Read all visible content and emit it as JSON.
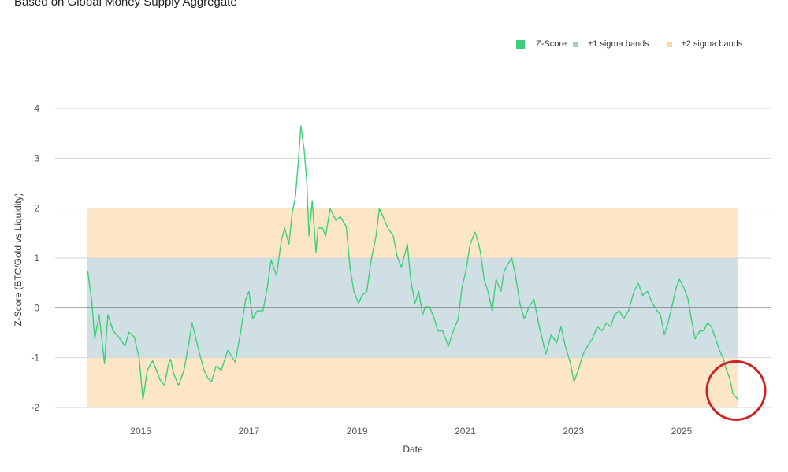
{
  "subtitle": "Based on Global Money Supply Aggregate",
  "legend": [
    {
      "label": "Z-Score",
      "color": "#3ecf7a"
    },
    {
      "label": "±1 sigma bands",
      "color": "#a9c6cf"
    },
    {
      "label": "±2 sigma bands",
      "color": "#f9d9a6"
    }
  ],
  "colors": {
    "line": "#3ecf7a",
    "band1": "#cfdfe3",
    "band2": "#fde6c8",
    "zero_line": "#222222",
    "grid": "#d6d6d6",
    "highlight_circle": "#cc2222"
  },
  "chart_data": {
    "type": "line",
    "xlabel": "Date",
    "ylabel": "Z-Score (BTC/Gold vs Liquidity)",
    "xlim": [
      2014.0,
      2026.05
    ],
    "ylim": [
      -2,
      4
    ],
    "x_ticks": [
      "2015",
      "2017",
      "2019",
      "2021",
      "2023",
      "2025"
    ],
    "y_ticks": [
      "4",
      "3",
      "2",
      "1",
      "0",
      "-1",
      "-2"
    ],
    "grid": true,
    "legend_position": "top-right",
    "bands": {
      "sigma1": [
        -1,
        1
      ],
      "sigma2": [
        -2,
        2
      ]
    },
    "annotation": "red circle around latest value",
    "series": [
      {
        "name": "Z-Score",
        "points": [
          [
            2014.0,
            0.65
          ],
          [
            2014.02,
            0.73
          ],
          [
            2014.09,
            0.17
          ],
          [
            2014.15,
            -0.62
          ],
          [
            2014.23,
            -0.14
          ],
          [
            2014.28,
            -0.62
          ],
          [
            2014.33,
            -1.12
          ],
          [
            2014.39,
            -0.14
          ],
          [
            2014.49,
            -0.46
          ],
          [
            2014.59,
            -0.58
          ],
          [
            2014.71,
            -0.77
          ],
          [
            2014.78,
            -0.49
          ],
          [
            2014.88,
            -0.58
          ],
          [
            2014.97,
            -1.01
          ],
          [
            2015.04,
            -1.85
          ],
          [
            2015.12,
            -1.25
          ],
          [
            2015.22,
            -1.06
          ],
          [
            2015.29,
            -1.25
          ],
          [
            2015.36,
            -1.45
          ],
          [
            2015.44,
            -1.56
          ],
          [
            2015.51,
            -1.14
          ],
          [
            2015.55,
            -1.03
          ],
          [
            2015.61,
            -1.33
          ],
          [
            2015.7,
            -1.56
          ],
          [
            2015.8,
            -1.25
          ],
          [
            2015.88,
            -0.77
          ],
          [
            2015.95,
            -0.3
          ],
          [
            2016.02,
            -0.62
          ],
          [
            2016.09,
            -0.93
          ],
          [
            2016.17,
            -1.25
          ],
          [
            2016.24,
            -1.41
          ],
          [
            2016.31,
            -1.48
          ],
          [
            2016.39,
            -1.17
          ],
          [
            2016.49,
            -1.25
          ],
          [
            2016.61,
            -0.85
          ],
          [
            2016.75,
            -1.09
          ],
          [
            2016.85,
            -0.46
          ],
          [
            2016.94,
            0.17
          ],
          [
            2017.0,
            0.33
          ],
          [
            2017.07,
            -0.22
          ],
          [
            2017.15,
            -0.06
          ],
          [
            2017.26,
            -0.06
          ],
          [
            2017.34,
            0.41
          ],
          [
            2017.41,
            0.96
          ],
          [
            2017.51,
            0.65
          ],
          [
            2017.6,
            1.36
          ],
          [
            2017.66,
            1.6
          ],
          [
            2017.74,
            1.28
          ],
          [
            2017.8,
            1.91
          ],
          [
            2017.86,
            2.23
          ],
          [
            2017.92,
            3.02
          ],
          [
            2017.96,
            3.65
          ],
          [
            2018.02,
            3.18
          ],
          [
            2018.07,
            2.54
          ],
          [
            2018.11,
            1.44
          ],
          [
            2018.17,
            2.15
          ],
          [
            2018.24,
            1.12
          ],
          [
            2018.28,
            1.6
          ],
          [
            2018.36,
            1.6
          ],
          [
            2018.42,
            1.44
          ],
          [
            2018.5,
            1.99
          ],
          [
            2018.61,
            1.75
          ],
          [
            2018.69,
            1.83
          ],
          [
            2018.8,
            1.63
          ],
          [
            2018.87,
            0.81
          ],
          [
            2018.94,
            0.33
          ],
          [
            2019.03,
            0.09
          ],
          [
            2019.09,
            0.25
          ],
          [
            2019.18,
            0.33
          ],
          [
            2019.26,
            0.96
          ],
          [
            2019.35,
            1.44
          ],
          [
            2019.41,
            1.99
          ],
          [
            2019.48,
            1.83
          ],
          [
            2019.57,
            1.6
          ],
          [
            2019.67,
            1.44
          ],
          [
            2019.74,
            1.04
          ],
          [
            2019.82,
            0.81
          ],
          [
            2019.93,
            1.28
          ],
          [
            2019.99,
            0.57
          ],
          [
            2020.07,
            0.09
          ],
          [
            2020.14,
            0.33
          ],
          [
            2020.21,
            -0.14
          ],
          [
            2020.26,
            0.02
          ],
          [
            2020.34,
            0.02
          ],
          [
            2020.43,
            -0.22
          ],
          [
            2020.49,
            -0.46
          ],
          [
            2020.58,
            -0.46
          ],
          [
            2020.69,
            -0.77
          ],
          [
            2020.78,
            -0.46
          ],
          [
            2020.87,
            -0.22
          ],
          [
            2020.94,
            0.41
          ],
          [
            2021.01,
            0.73
          ],
          [
            2021.09,
            1.28
          ],
          [
            2021.18,
            1.52
          ],
          [
            2021.23,
            1.36
          ],
          [
            2021.28,
            1.12
          ],
          [
            2021.35,
            0.57
          ],
          [
            2021.42,
            0.33
          ],
          [
            2021.5,
            -0.06
          ],
          [
            2021.57,
            0.57
          ],
          [
            2021.66,
            0.33
          ],
          [
            2021.72,
            0.73
          ],
          [
            2021.79,
            0.88
          ],
          [
            2021.86,
            1.0
          ],
          [
            2021.93,
            0.65
          ],
          [
            2022.01,
            0.09
          ],
          [
            2022.09,
            -0.22
          ],
          [
            2022.18,
            0.02
          ],
          [
            2022.27,
            0.17
          ],
          [
            2022.37,
            -0.38
          ],
          [
            2022.49,
            -0.93
          ],
          [
            2022.59,
            -0.54
          ],
          [
            2022.69,
            -0.7
          ],
          [
            2022.77,
            -0.38
          ],
          [
            2022.85,
            -0.77
          ],
          [
            2022.94,
            -1.09
          ],
          [
            2023.01,
            -1.48
          ],
          [
            2023.09,
            -1.25
          ],
          [
            2023.18,
            -0.93
          ],
          [
            2023.26,
            -0.77
          ],
          [
            2023.35,
            -0.62
          ],
          [
            2023.44,
            -0.38
          ],
          [
            2023.53,
            -0.46
          ],
          [
            2023.61,
            -0.3
          ],
          [
            2023.69,
            -0.38
          ],
          [
            2023.76,
            -0.14
          ],
          [
            2023.85,
            -0.06
          ],
          [
            2023.93,
            -0.22
          ],
          [
            2024.02,
            -0.06
          ],
          [
            2024.12,
            0.33
          ],
          [
            2024.2,
            0.49
          ],
          [
            2024.28,
            0.25
          ],
          [
            2024.37,
            0.33
          ],
          [
            2024.46,
            0.09
          ],
          [
            2024.55,
            -0.06
          ],
          [
            2024.61,
            -0.14
          ],
          [
            2024.68,
            -0.54
          ],
          [
            2024.75,
            -0.3
          ],
          [
            2024.82,
            0.02
          ],
          [
            2024.9,
            0.41
          ],
          [
            2024.96,
            0.57
          ],
          [
            2025.04,
            0.41
          ],
          [
            2025.12,
            0.17
          ],
          [
            2025.18,
            -0.22
          ],
          [
            2025.25,
            -0.62
          ],
          [
            2025.34,
            -0.46
          ],
          [
            2025.41,
            -0.46
          ],
          [
            2025.48,
            -0.3
          ],
          [
            2025.55,
            -0.38
          ],
          [
            2025.63,
            -0.62
          ],
          [
            2025.7,
            -0.85
          ],
          [
            2025.77,
            -1.01
          ],
          [
            2025.83,
            -1.25
          ],
          [
            2025.89,
            -1.41
          ],
          [
            2025.95,
            -1.72
          ],
          [
            2026.01,
            -1.8
          ],
          [
            2026.05,
            -1.85
          ]
        ]
      }
    ]
  }
}
